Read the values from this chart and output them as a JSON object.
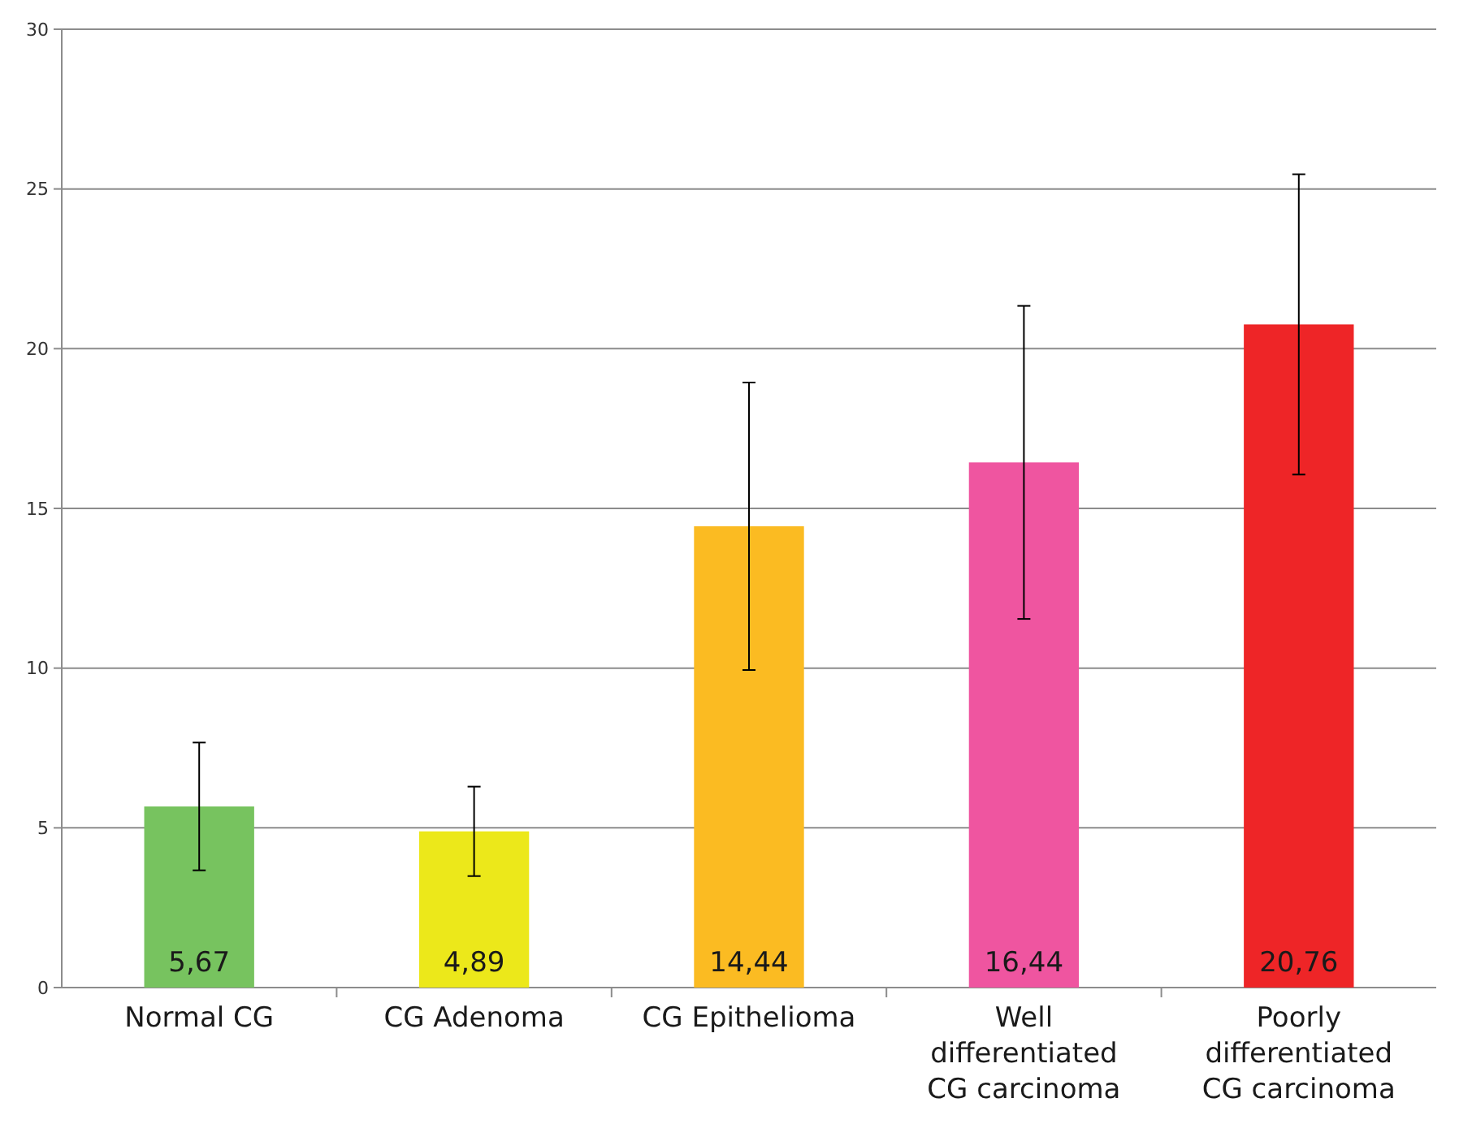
{
  "chart_data": {
    "type": "bar",
    "categories": [
      "Normal CG",
      "CG Adenoma",
      "CG Epithelioma",
      "Well differentiated CG carcinoma",
      "Poorly differentiated CG carcinoma"
    ],
    "values": [
      5.67,
      4.89,
      14.44,
      16.44,
      20.76
    ],
    "colors": [
      "#77c35f",
      "#ece81a",
      "#fbbb22",
      "#ef55a0",
      "#ee2527"
    ],
    "errors": [
      2.0,
      1.4,
      4.5,
      4.9,
      4.7
    ],
    "value_labels": [
      "5,67",
      "4,89",
      "14,44",
      "16,44",
      "20,76"
    ],
    "ylim": [
      0,
      30
    ],
    "yticks": [
      0,
      5,
      10,
      15,
      20,
      25,
      30
    ],
    "grid": "y"
  }
}
